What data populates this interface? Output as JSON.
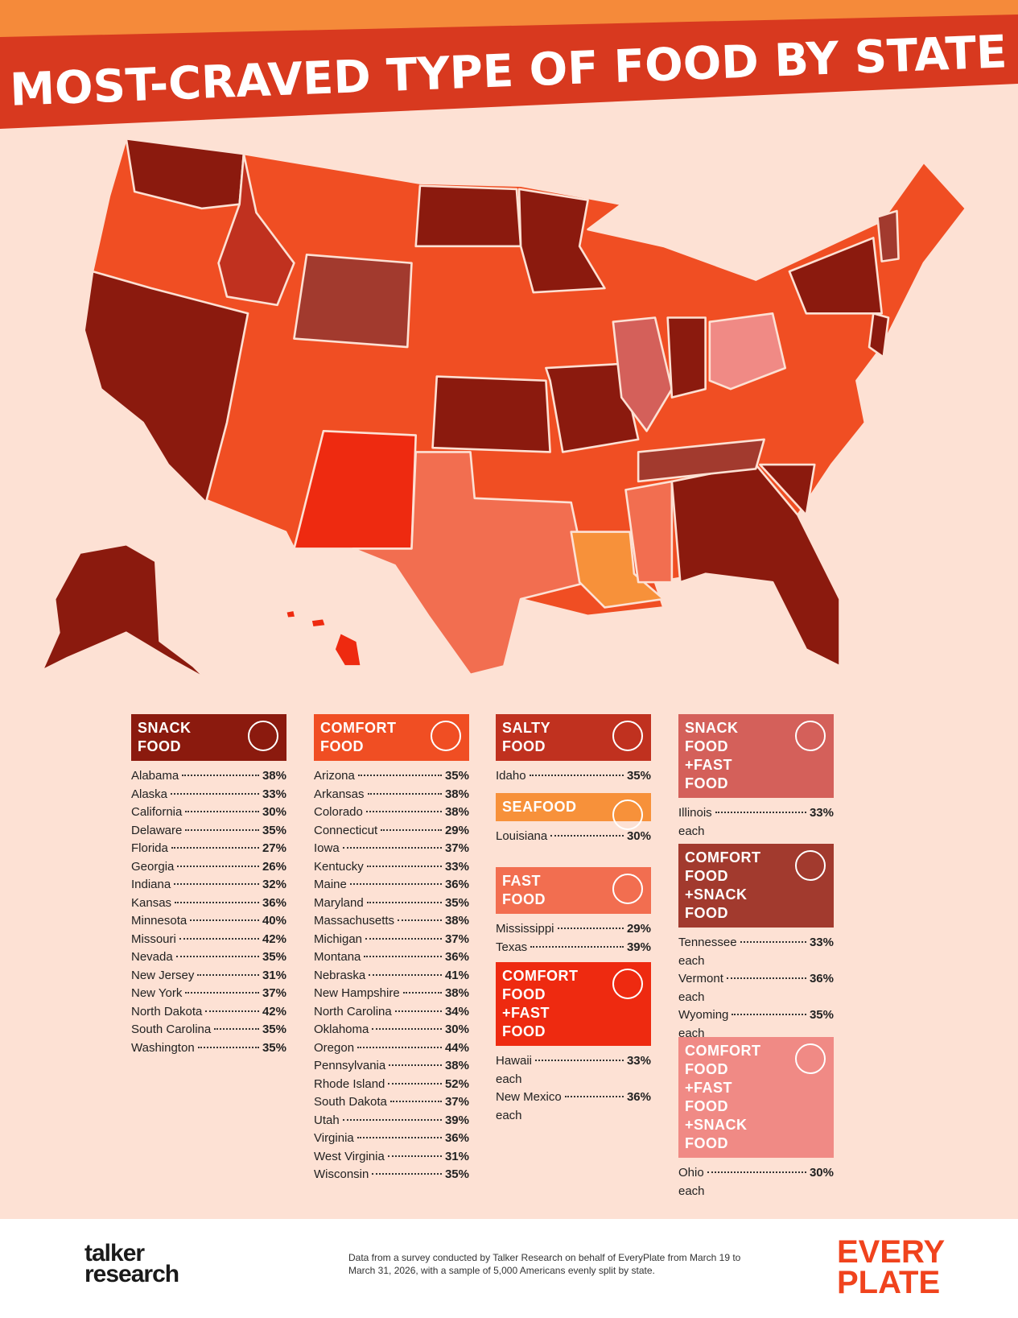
{
  "header": {
    "title": "MOST-CRAVED TYPE OF FOOD BY STATE"
  },
  "groups": [
    {
      "label": [
        "SNACK",
        "FOOD"
      ],
      "color": "#8b1a0e",
      "entries": [
        {
          "state": "Alabama",
          "value": "38%"
        },
        {
          "state": "Alaska",
          "value": "33%"
        },
        {
          "state": "California",
          "value": "30%"
        },
        {
          "state": "Delaware",
          "value": "35%"
        },
        {
          "state": "Florida",
          "value": "27%"
        },
        {
          "state": "Georgia",
          "value": "26%"
        },
        {
          "state": "Indiana",
          "value": "32%"
        },
        {
          "state": "Kansas",
          "value": "36%"
        },
        {
          "state": "Minnesota",
          "value": "40%"
        },
        {
          "state": "Missouri",
          "value": "42%"
        },
        {
          "state": "Nevada",
          "value": "35%"
        },
        {
          "state": "New Jersey",
          "value": "31%"
        },
        {
          "state": "New York",
          "value": "37%"
        },
        {
          "state": "North Dakota",
          "value": "42%"
        },
        {
          "state": "South Carolina",
          "value": "35%"
        },
        {
          "state": "Washington",
          "value": "35%"
        }
      ]
    },
    {
      "label": [
        "COMFORT",
        "FOOD"
      ],
      "color": "#f04e23",
      "entries": [
        {
          "state": "Arizona",
          "value": "35%"
        },
        {
          "state": "Arkansas",
          "value": "38%"
        },
        {
          "state": "Colorado",
          "value": "38%"
        },
        {
          "state": "Connecticut",
          "value": "29%"
        },
        {
          "state": "Iowa",
          "value": "37%"
        },
        {
          "state": "Kentucky",
          "value": "33%"
        },
        {
          "state": "Maine",
          "value": "36%"
        },
        {
          "state": "Maryland",
          "value": "35%"
        },
        {
          "state": "Massachusetts",
          "value": "38%"
        },
        {
          "state": "Michigan",
          "value": "37%"
        },
        {
          "state": "Montana",
          "value": "36%"
        },
        {
          "state": "Nebraska",
          "value": "41%"
        },
        {
          "state": "New Hampshire",
          "value": "38%"
        },
        {
          "state": "North Carolina",
          "value": "34%"
        },
        {
          "state": "Oklahoma",
          "value": "30%"
        },
        {
          "state": "Oregon",
          "value": "44%"
        },
        {
          "state": "Pennsylvania",
          "value": "38%"
        },
        {
          "state": "Rhode Island",
          "value": "52%"
        },
        {
          "state": "South Dakota",
          "value": "37%"
        },
        {
          "state": "Utah",
          "value": "39%"
        },
        {
          "state": "Virginia",
          "value": "36%"
        },
        {
          "state": "West Virginia",
          "value": "31%"
        },
        {
          "state": "Wisconsin",
          "value": "35%"
        }
      ]
    },
    {
      "label": [
        "SALTY",
        "FOOD"
      ],
      "color": "#c0311f",
      "entries": [
        {
          "state": "Idaho",
          "value": "35%"
        }
      ]
    },
    {
      "label": [
        "SEAFOOD"
      ],
      "color": "#f7913a",
      "entries": [
        {
          "state": "Louisiana",
          "value": "30%"
        }
      ]
    },
    {
      "label": [
        "FAST",
        "FOOD"
      ],
      "color": "#f26e50",
      "entries": [
        {
          "state": "Mississippi",
          "value": "29%"
        },
        {
          "state": "Texas",
          "value": "39%"
        }
      ]
    },
    {
      "label": [
        "COMFORT",
        "FOOD",
        "+FAST",
        "FOOD"
      ],
      "color": "#ee2a10",
      "entries": [
        {
          "state": "Hawaii",
          "value": "33%",
          "note": "each"
        },
        {
          "state": "New Mexico",
          "value": "36%",
          "note": "each"
        }
      ]
    },
    {
      "label": [
        "SNACK",
        "FOOD",
        "+FAST",
        "FOOD"
      ],
      "color": "#d4605a",
      "entries": [
        {
          "state": "Illinois",
          "value": "33%",
          "note": "each"
        }
      ]
    },
    {
      "label": [
        "COMFORT",
        "FOOD",
        "+SNACK",
        "FOOD"
      ],
      "color": "#a23a2e",
      "entries": [
        {
          "state": "Tennessee",
          "value": "33%",
          "note": "each"
        },
        {
          "state": "Vermont",
          "value": "36%",
          "note": "each"
        },
        {
          "state": "Wyoming",
          "value": "35%",
          "note": "each"
        }
      ]
    },
    {
      "label": [
        "COMFORT",
        "FOOD",
        "+FAST",
        "FOOD",
        "+SNACK",
        "FOOD"
      ],
      "color": "#f08a85",
      "entries": [
        {
          "state": "Ohio",
          "value": "30%",
          "note": "each"
        }
      ]
    }
  ],
  "footer": {
    "logo_left": [
      "talker",
      "research"
    ],
    "note": "Data from a survey conducted by Talker Research on behalf of EveryPlate from March 19 to March 31, 2026, with a sample of 5,000 Americans evenly split by state.",
    "logo_right": [
      "EVERY",
      "PLATE"
    ]
  }
}
